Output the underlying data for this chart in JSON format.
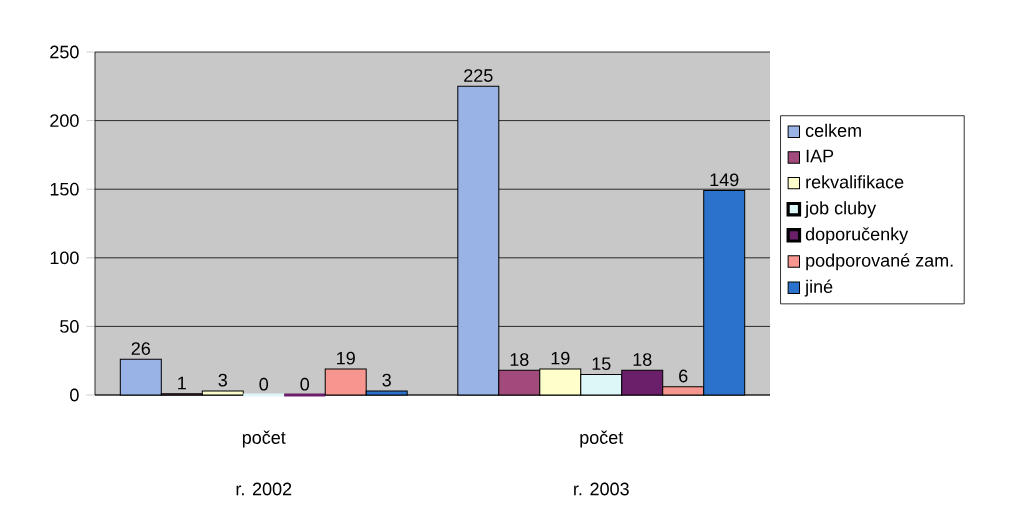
{
  "chart_data": {
    "type": "bar",
    "categories": [
      "počet",
      "počet"
    ],
    "series": [
      {
        "name": "celkem",
        "color": "#99b3e6",
        "values": [
          26,
          225
        ]
      },
      {
        "name": "IAP",
        "color": "#a34a7c",
        "values": [
          1,
          18
        ]
      },
      {
        "name": "rekvalifikace",
        "color": "#ffffcc",
        "values": [
          3,
          19
        ]
      },
      {
        "name": "job cluby",
        "color": "#ddf6f8",
        "values": [
          0,
          15
        ]
      },
      {
        "name": "doporučenky",
        "color": "#6b1f6b",
        "values": [
          0,
          18
        ]
      },
      {
        "name": "podporované zam.",
        "color": "#f7968e",
        "values": [
          19,
          6
        ]
      },
      {
        "name": "jiné",
        "color": "#2a72cc",
        "values": [
          3,
          149
        ]
      }
    ],
    "annotations": [
      "r. 2002",
      "r. 2003"
    ],
    "ylim": [
      0,
      250
    ],
    "yticks": [
      0,
      50,
      100,
      150,
      200,
      250
    ],
    "grid": "y",
    "legend": "right",
    "data_labels": true
  }
}
